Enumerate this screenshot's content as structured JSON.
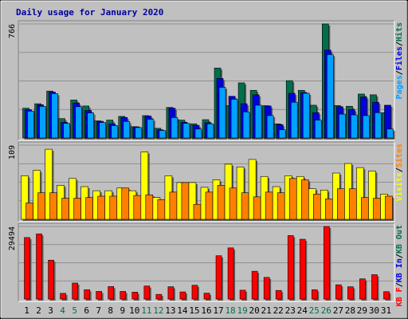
{
  "chart_data": {
    "type": "bar",
    "title": "Daily usage for January 2020",
    "categories": [
      "1",
      "2",
      "3",
      "4",
      "5",
      "6",
      "7",
      "8",
      "9",
      "10",
      "11",
      "12",
      "13",
      "14",
      "15",
      "16",
      "17",
      "18",
      "19",
      "20",
      "21",
      "22",
      "23",
      "24",
      "25",
      "26",
      "27",
      "28",
      "29",
      "30",
      "31"
    ],
    "weekend_days": [
      "4",
      "5",
      "11",
      "12",
      "18",
      "19",
      "25",
      "26"
    ],
    "panels": [
      {
        "name": "pages-files-hits",
        "ymax": 766,
        "ymax_label": "766",
        "legend": [
          "Pages",
          "/",
          "Files",
          "/",
          "Hits"
        ],
        "series": [
          {
            "name": "Hits",
            "color": "#006f4b",
            "values": [
              200,
              230,
              315,
              130,
              255,
              215,
              115,
              120,
              145,
              76,
              150,
              65,
              205,
              120,
              95,
              123,
              470,
              217,
              370,
              320,
              217,
              95,
              385,
              320,
              220,
              766,
              218,
              213,
              295,
              290,
              170
            ]
          },
          {
            "name": "Files",
            "color": "#0000e0",
            "values": [
              190,
              223,
              308,
              105,
              235,
              185,
              112,
              95,
              138,
              75,
              147,
              55,
              200,
              105,
              85,
              103,
              400,
              280,
              230,
              290,
              215,
              90,
              300,
              305,
              170,
              590,
              210,
              190,
              275,
              240,
              220
            ]
          },
          {
            "name": "Pages",
            "color": "#00a0ff",
            "values": [
              180,
              212,
              298,
              98,
              210,
              168,
              104,
              83,
              111,
              70,
              126,
              50,
              137,
              98,
              60,
              95,
              340,
              260,
              175,
              220,
              150,
              55,
              240,
              300,
              120,
              560,
              160,
              155,
              150,
              170,
              60
            ]
          }
        ]
      },
      {
        "name": "visits-sites",
        "ymax": 109,
        "ymax_label": "109",
        "legend": [
          "Visits",
          "/",
          "Sites"
        ],
        "series": [
          {
            "name": "Visits",
            "color": "#ffff00",
            "values": [
              64,
              72,
              103,
              50,
              60,
              48,
              42,
              42,
              46,
              42,
              99,
              32,
              64,
              54,
              54,
              47,
              58,
              81,
              77,
              88,
              63,
              48,
              64,
              63,
              45,
              43,
              68,
              82,
              76,
              71,
              37
            ]
          },
          {
            "name": "Sites",
            "color": "#ff8000",
            "values": [
              24,
              39,
              39,
              31,
              31,
              32,
              34,
              34,
              46,
              35,
              36,
              29,
              40,
              54,
              22,
              40,
              50,
              46,
              39,
              33,
              40,
              39,
              60,
              58,
              37,
              30,
              45,
              45,
              32,
              31,
              34
            ]
          }
        ]
      },
      {
        "name": "kb",
        "ymax": 29494,
        "ymax_label": "29494",
        "legend": [
          "KB F",
          "/",
          "KB In",
          "/",
          "KB Out"
        ],
        "series": [
          {
            "name": "KB F",
            "color": "#ff0000",
            "values": [
              25000,
              26500,
              15800,
              2300,
              6500,
              3800,
              3100,
              5100,
              3100,
              2800,
              5300,
              1900,
              5000,
              2900,
              5600,
              2400,
              17600,
              20800,
              3600,
              11300,
              8800,
              3500,
              25800,
              24300,
              3800,
              29494,
              5800,
              5000,
              8200,
              9900,
              3000
            ]
          }
        ]
      }
    ]
  }
}
